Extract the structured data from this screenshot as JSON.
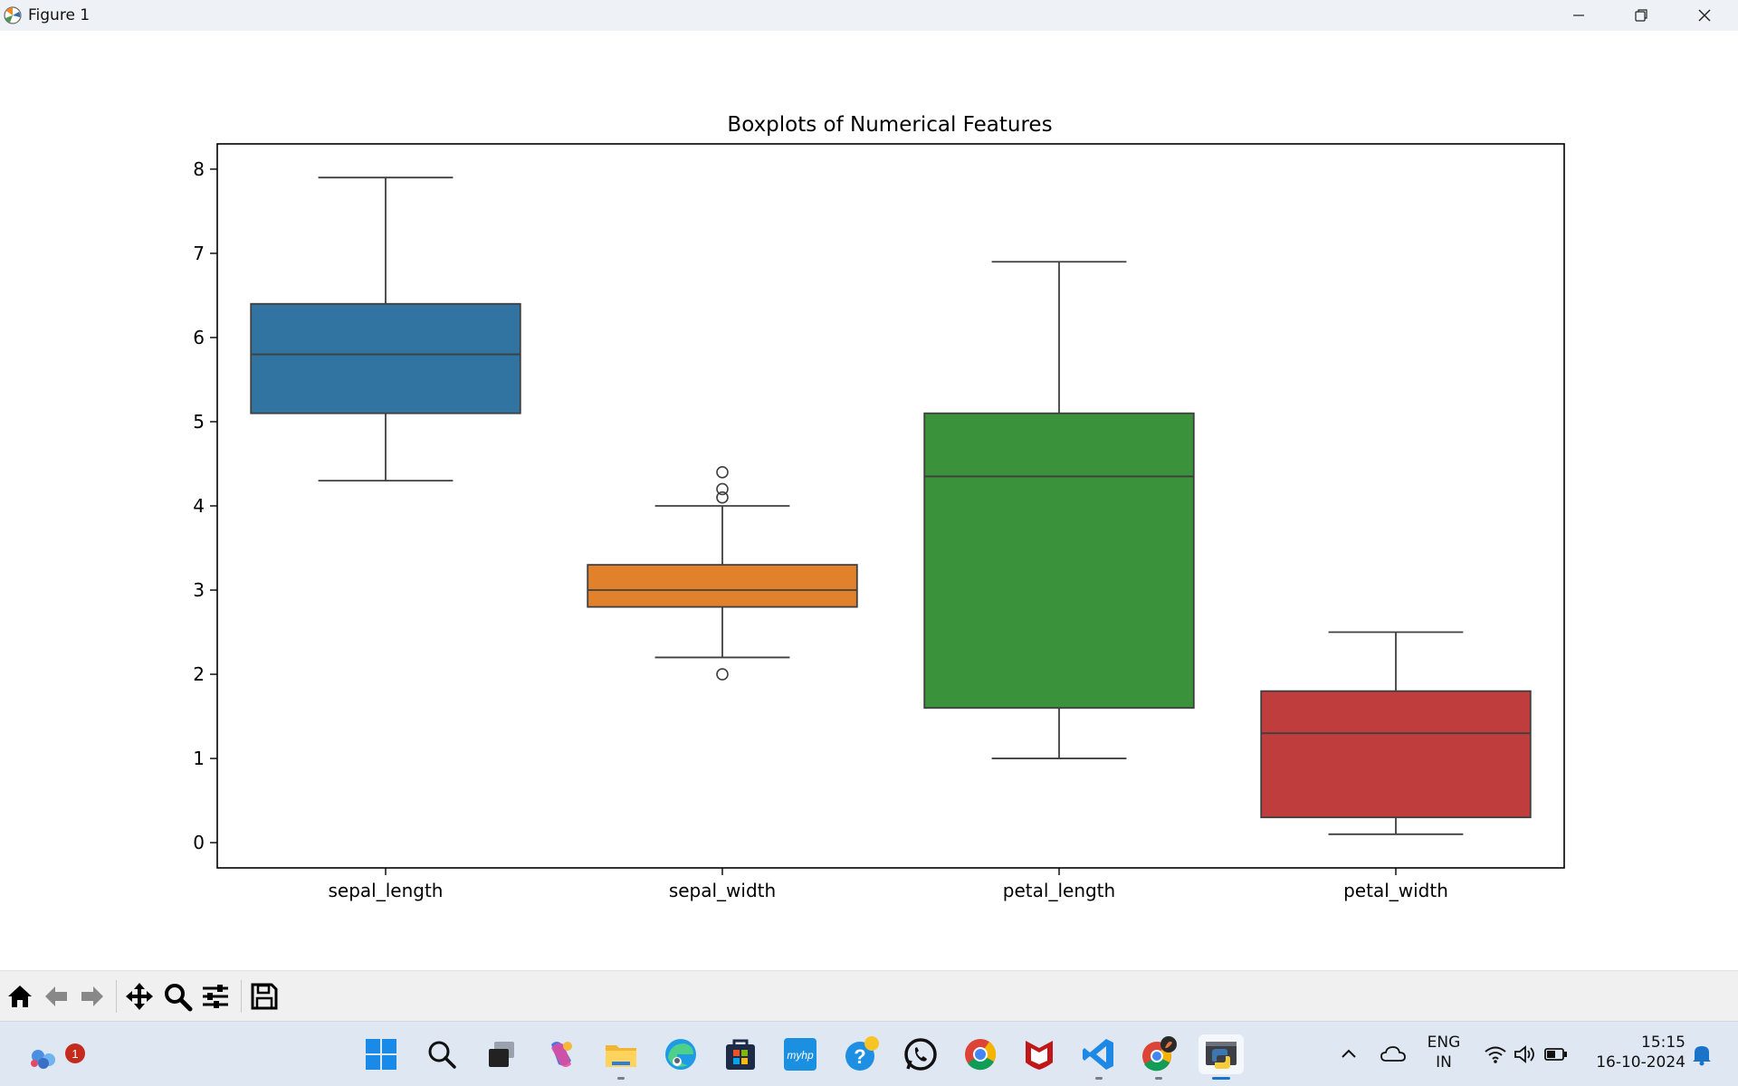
{
  "window": {
    "title": "Figure 1"
  },
  "chart_data": {
    "type": "box",
    "title": "Boxplots of Numerical Features",
    "xlabel": "",
    "ylabel": "",
    "ylim": [
      -0.3,
      8.3
    ],
    "yticks": [
      0,
      1,
      2,
      3,
      4,
      5,
      6,
      7,
      8
    ],
    "grid": false,
    "categories": [
      "sepal_length",
      "sepal_width",
      "petal_length",
      "petal_width"
    ],
    "series": [
      {
        "color": "#3274a1",
        "q1": 5.1,
        "median": 5.8,
        "q3": 6.4,
        "whisker_low": 4.3,
        "whisker_high": 7.9,
        "outliers": []
      },
      {
        "color": "#e1812c",
        "q1": 2.8,
        "median": 3.0,
        "q3": 3.3,
        "whisker_low": 2.2,
        "whisker_high": 4.0,
        "outliers": [
          4.4,
          4.2,
          4.1,
          2.0
        ]
      },
      {
        "color": "#3a923a",
        "q1": 1.6,
        "median": 4.35,
        "q3": 5.1,
        "whisker_low": 1.0,
        "whisker_high": 6.9,
        "outliers": []
      },
      {
        "color": "#c03d3e",
        "q1": 0.3,
        "median": 1.3,
        "q3": 1.8,
        "whisker_low": 0.1,
        "whisker_high": 2.5,
        "outliers": []
      }
    ]
  },
  "toolbar": {
    "buttons": [
      "home-icon",
      "back-icon",
      "forward-icon",
      "pan-icon",
      "zoom-icon",
      "configure-subplots-icon",
      "save-icon"
    ]
  },
  "taskbar": {
    "notification_count": "1",
    "lang_line1": "ENG",
    "lang_line2": "IN",
    "time": "15:15",
    "date": "16-10-2024",
    "apps": [
      "start-icon",
      "search-icon",
      "task-view-icon",
      "copilot-icon",
      "file-explorer-icon",
      "edge-icon",
      "store-icon",
      "myhp-icon",
      "help-icon",
      "whatsapp-icon",
      "chrome-icon",
      "mcafee-icon",
      "vscode-icon",
      "chrome-profile-icon",
      "python-icon"
    ],
    "myhp_label": "myhp"
  }
}
